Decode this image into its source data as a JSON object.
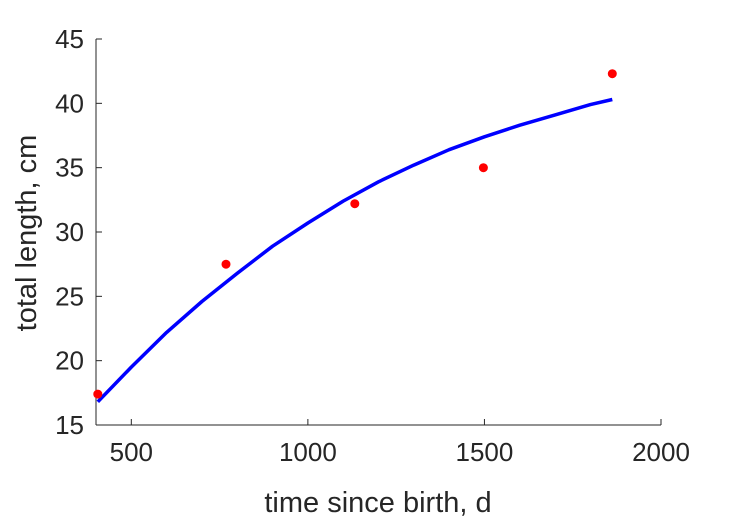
{
  "chart_data": {
    "type": "line",
    "xlabel": "time since birth, d",
    "ylabel": "total length, cm",
    "xlim": [
      400,
      2000
    ],
    "ylim": [
      15,
      45
    ],
    "xticks": [
      500,
      1000,
      1500,
      2000
    ],
    "yticks": [
      15,
      20,
      25,
      30,
      35,
      40,
      45
    ],
    "grid": false,
    "series": [
      {
        "kind": "scatter",
        "color": "#ff0000",
        "x": [
          405,
          768,
          1133,
          1497,
          1862
        ],
        "y": [
          17.4,
          27.5,
          32.2,
          35.0,
          42.3
        ]
      },
      {
        "kind": "line",
        "color": "#0000ff",
        "x": [
          405,
          500,
          600,
          700,
          800,
          900,
          1000,
          1100,
          1200,
          1300,
          1400,
          1500,
          1600,
          1700,
          1800,
          1862
        ],
        "y": [
          16.8,
          19.5,
          22.2,
          24.6,
          26.8,
          28.9,
          30.7,
          32.4,
          33.9,
          35.2,
          36.4,
          37.4,
          38.3,
          39.1,
          39.9,
          40.3
        ]
      }
    ]
  }
}
